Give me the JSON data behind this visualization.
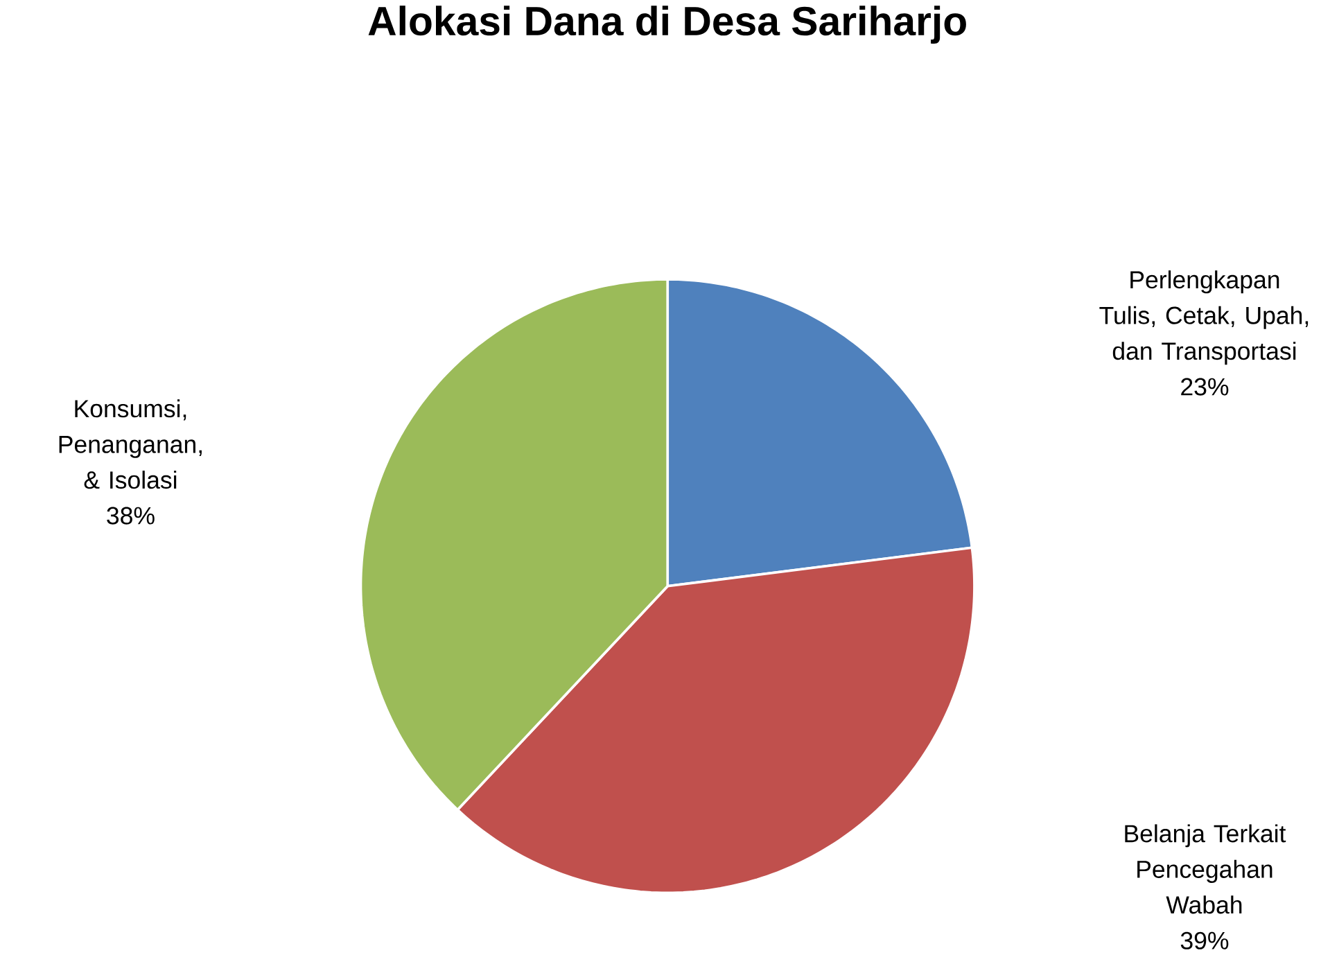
{
  "chart_data": {
    "type": "pie",
    "title": "Alokasi Dana di Desa Sariharjo",
    "categories": [
      "Perlengkapan Tulis, Cetak, Upah, dan Transportasi",
      "Belanja Terkait Pencegahan Wabah",
      "Konsumsi, Penanganan, & Isolasi"
    ],
    "values": [
      23,
      39,
      38
    ],
    "colors": [
      "#4f81bd",
      "#c0504d",
      "#9bbb59"
    ],
    "value_labels": [
      "23%",
      "39%",
      "38%"
    ],
    "data_labels": true,
    "legend": false
  }
}
